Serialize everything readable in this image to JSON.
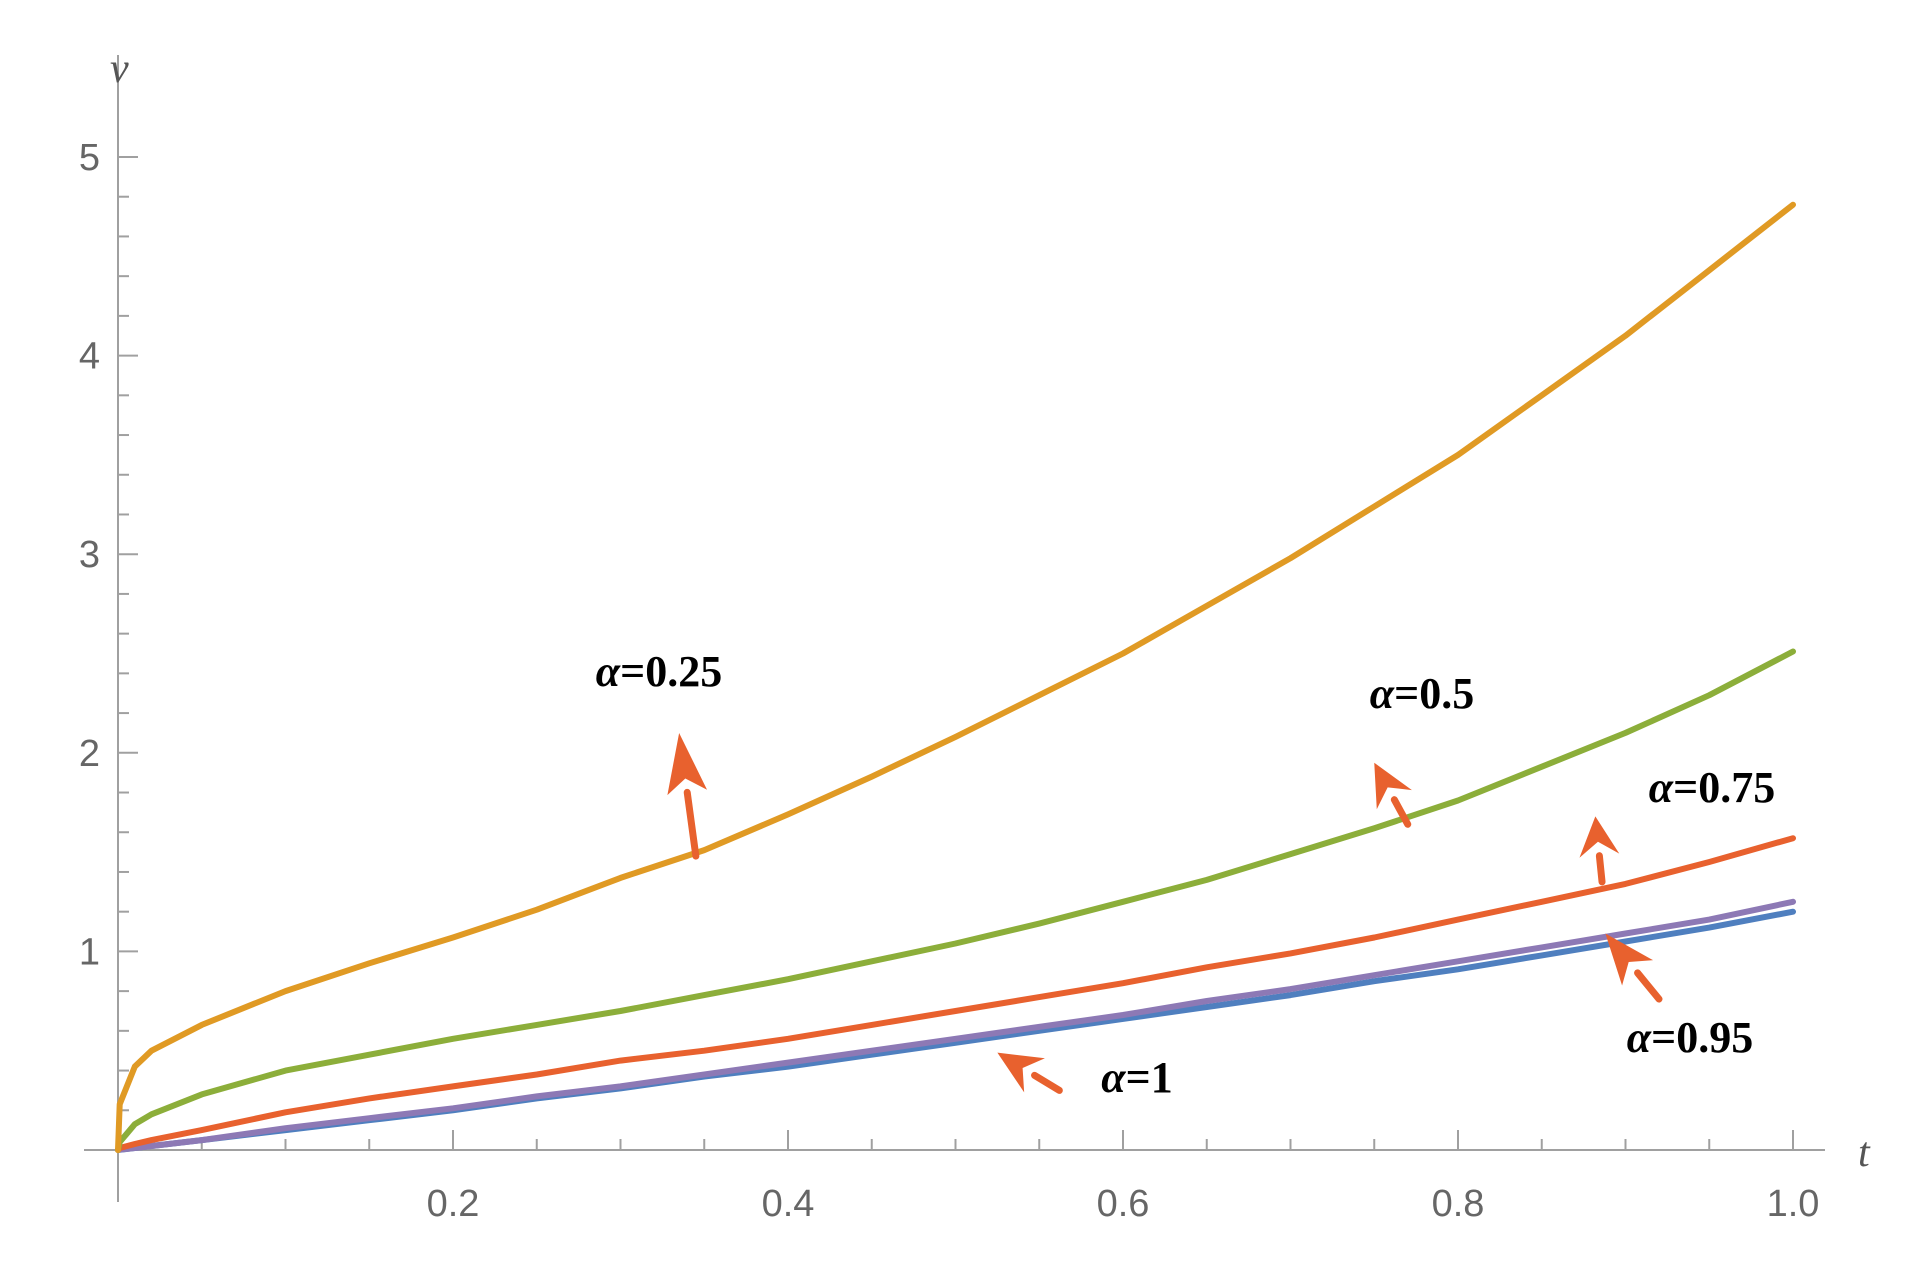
{
  "chart_data": {
    "type": "line",
    "title": "",
    "xlabel": "t",
    "ylabel": "v",
    "xlim": [
      0,
      1.0
    ],
    "ylim": [
      0,
      5
    ],
    "x_ticks": [
      0.2,
      0.4,
      0.6,
      0.8,
      1.0
    ],
    "x_tick_labels": [
      "0.2",
      "0.4",
      "0.6",
      "0.8",
      "1.0"
    ],
    "y_ticks": [
      1,
      2,
      3,
      4,
      5
    ],
    "y_tick_labels": [
      "1",
      "2",
      "3",
      "4",
      "5"
    ],
    "grid": false,
    "legend": "none",
    "x": [
      0,
      0.001,
      0.01,
      0.02,
      0.05,
      0.1,
      0.15,
      0.2,
      0.25,
      0.3,
      0.35,
      0.4,
      0.45,
      0.5,
      0.55,
      0.6,
      0.65,
      0.7,
      0.75,
      0.8,
      0.85,
      0.9,
      0.95,
      1.0
    ],
    "series": [
      {
        "color": "#e09a24",
        "values": [
          0,
          0.23,
          0.42,
          0.5,
          0.63,
          0.8,
          0.94,
          1.07,
          1.21,
          1.37,
          1.51,
          1.69,
          1.88,
          2.08,
          2.29,
          2.5,
          2.74,
          2.98,
          3.24,
          3.5,
          3.8,
          4.1,
          4.43,
          4.76
        ]
      },
      {
        "color": "#8cae3a",
        "values": [
          0,
          0.04,
          0.13,
          0.18,
          0.28,
          0.4,
          0.48,
          0.56,
          0.63,
          0.7,
          0.78,
          0.86,
          0.95,
          1.04,
          1.14,
          1.25,
          1.36,
          1.49,
          1.62,
          1.76,
          1.93,
          2.1,
          2.29,
          2.51
        ]
      },
      {
        "color": "#e8612e",
        "values": [
          0,
          0.01,
          0.03,
          0.05,
          0.1,
          0.19,
          0.26,
          0.32,
          0.38,
          0.45,
          0.5,
          0.56,
          0.63,
          0.7,
          0.77,
          0.84,
          0.92,
          0.99,
          1.07,
          1.16,
          1.25,
          1.34,
          1.45,
          1.57
        ]
      },
      {
        "color": "#8d79b5",
        "values": [
          0,
          0.002,
          0.01,
          0.02,
          0.05,
          0.11,
          0.16,
          0.21,
          0.27,
          0.32,
          0.38,
          0.44,
          0.5,
          0.56,
          0.62,
          0.68,
          0.75,
          0.81,
          0.88,
          0.95,
          1.02,
          1.09,
          1.16,
          1.25
        ]
      },
      {
        "color": "#4f7fbf",
        "values": [
          0,
          0.001,
          0.01,
          0.02,
          0.05,
          0.1,
          0.15,
          0.2,
          0.26,
          0.31,
          0.37,
          0.42,
          0.48,
          0.54,
          0.6,
          0.66,
          0.72,
          0.78,
          0.85,
          0.91,
          0.98,
          1.05,
          1.12,
          1.2
        ]
      }
    ],
    "annotations": [
      {
        "greek": "α",
        "text": "=0.25",
        "arrow_from": [
          0.345,
          1.48
        ],
        "arrow_to": [
          0.335,
          2.1
        ]
      },
      {
        "greek": "α",
        "text": "=0.5",
        "arrow_from": [
          0.77,
          1.64
        ],
        "arrow_to": [
          0.75,
          1.95
        ]
      },
      {
        "greek": "α",
        "text": "=0.75",
        "arrow_from": [
          0.886,
          1.35
        ],
        "arrow_to": [
          0.882,
          1.68
        ]
      },
      {
        "greek": "α",
        "text": "=0.95",
        "arrow_from": [
          0.92,
          0.76
        ],
        "arrow_to": [
          0.888,
          1.09
        ]
      },
      {
        "greek": "α",
        "text": "=1",
        "arrow_from": [
          0.562,
          0.3
        ],
        "arrow_to": [
          0.525,
          0.49
        ]
      }
    ],
    "arrow_color": "#e8612e"
  }
}
